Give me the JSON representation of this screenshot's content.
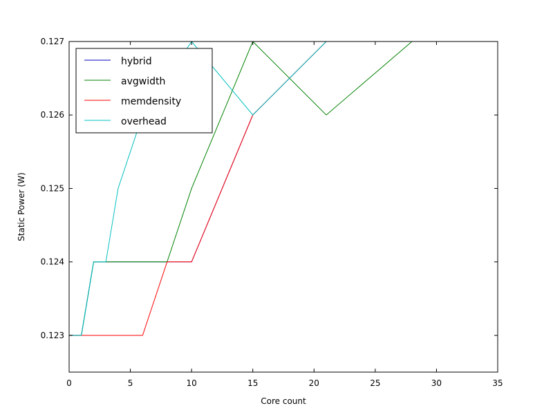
{
  "chart_data": {
    "type": "line",
    "title": "",
    "xlabel": "Core count",
    "ylabel": "Static Power (W)",
    "xlim": [
      0,
      35
    ],
    "ylim": [
      0.1225,
      0.127
    ],
    "xticks": [
      0,
      5,
      10,
      15,
      20,
      25,
      30,
      35
    ],
    "xtick_labels": [
      "0",
      "5",
      "10",
      "15",
      "20",
      "25",
      "30",
      "35"
    ],
    "yticks": [
      0.123,
      0.124,
      0.125,
      0.126,
      0.127
    ],
    "ytick_labels": [
      "0.123",
      "0.124",
      "0.125",
      "0.126",
      "0.127"
    ],
    "grid": false,
    "legend_position": "top-left",
    "series": [
      {
        "name": "hybrid",
        "color": "#0000bf",
        "points": [
          [
            0,
            0.123
          ],
          [
            1,
            0.123
          ],
          [
            2,
            0.124
          ],
          [
            10,
            0.124
          ],
          [
            15,
            0.126
          ],
          [
            21,
            0.127
          ],
          [
            35,
            0.127
          ]
        ]
      },
      {
        "name": "avgwidth",
        "color": "#008000",
        "points": [
          [
            0,
            0.123
          ],
          [
            1,
            0.123
          ],
          [
            2,
            0.124
          ],
          [
            8,
            0.124
          ],
          [
            10,
            0.125
          ],
          [
            15,
            0.127
          ],
          [
            21,
            0.126
          ],
          [
            28,
            0.127
          ],
          [
            35,
            0.127
          ]
        ]
      },
      {
        "name": "memdensity",
        "color": "#ff0000",
        "points": [
          [
            0,
            0.123
          ],
          [
            6,
            0.123
          ],
          [
            8,
            0.124
          ],
          [
            10,
            0.124
          ],
          [
            15,
            0.126
          ],
          [
            21,
            0.127
          ],
          [
            35,
            0.127
          ]
        ]
      },
      {
        "name": "overhead",
        "color": "#00bfbf",
        "points": [
          [
            0,
            0.123
          ],
          [
            1,
            0.123
          ],
          [
            2,
            0.124
          ],
          [
            3,
            0.124
          ],
          [
            4,
            0.125
          ],
          [
            6,
            0.126
          ],
          [
            10,
            0.127
          ],
          [
            15,
            0.126
          ],
          [
            21,
            0.127
          ],
          [
            35,
            0.127
          ]
        ]
      }
    ]
  }
}
